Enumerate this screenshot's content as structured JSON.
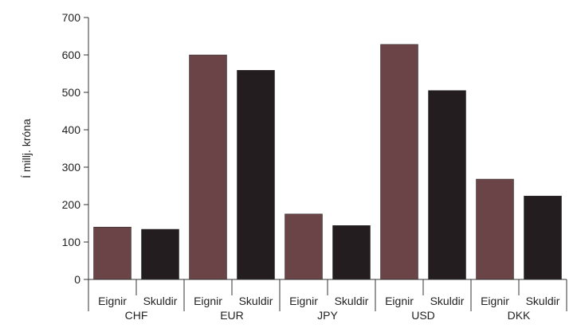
{
  "chart_data": {
    "type": "bar",
    "title": "",
    "ylabel": "Í millj. króna",
    "xlabel": "",
    "ylim": [
      0,
      700
    ],
    "y_ticks": [
      0,
      100,
      200,
      300,
      400,
      500,
      600,
      700
    ],
    "categories": [
      "CHF",
      "EUR",
      "JPY",
      "USD",
      "DKK"
    ],
    "series": [
      {
        "name": "Eignir",
        "values": [
          140,
          600,
          175,
          628,
          268
        ],
        "color": "#6b4447"
      },
      {
        "name": "Skuldir",
        "values": [
          134,
          559,
          144,
          505,
          223
        ],
        "color": "#231d1f"
      }
    ],
    "grid": false,
    "legend": "none"
  }
}
